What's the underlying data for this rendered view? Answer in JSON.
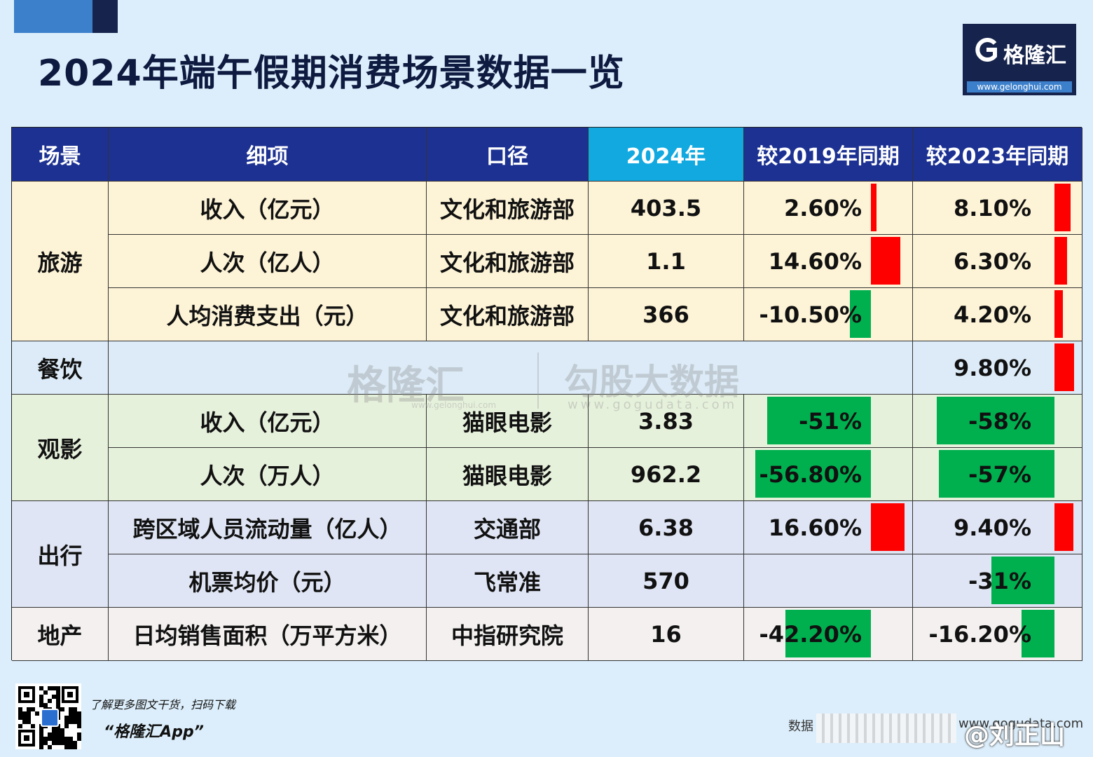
{
  "title": "2024年端午假期消费场景数据一览",
  "logo": {
    "name": "格隆汇",
    "url": "www.gelonghui.com"
  },
  "colors": {
    "header_bg": "#1c3192",
    "year_header_bg": "#12a9e0",
    "increase": "#ff0000",
    "decrease": "#00b04f",
    "travel_bg": "#fdf3d6",
    "food_bg": "#dcebf7",
    "movie_bg": "#e6f1dc",
    "transport_bg": "#dfe5f4",
    "estate_bg": "#f3f0ef"
  },
  "chart_data": {
    "type": "table",
    "title": "2024年端午假期消费场景数据一览",
    "columns": [
      "场景",
      "细项",
      "口径",
      "2024年",
      "较2019年同期",
      "较2023年同期"
    ],
    "rows": [
      {
        "scene": "旅游",
        "item": "收入（亿元）",
        "source": "文化和旅游部",
        "v2024": "403.5",
        "vs2019": "2.60%",
        "vs2019_num": 2.6,
        "vs2023": "8.10%",
        "vs2023_num": 8.1
      },
      {
        "scene": "旅游",
        "item": "人次（亿人）",
        "source": "文化和旅游部",
        "v2024": "1.1",
        "vs2019": "14.60%",
        "vs2019_num": 14.6,
        "vs2023": "6.30%",
        "vs2023_num": 6.3
      },
      {
        "scene": "旅游",
        "item": "人均消费支出（元）",
        "source": "文化和旅游部",
        "v2024": "366",
        "vs2019": "-10.50%",
        "vs2019_num": -10.5,
        "vs2023": "4.20%",
        "vs2023_num": 4.2
      },
      {
        "scene": "餐饮",
        "item": "",
        "source": "",
        "v2024": "",
        "vs2019": "",
        "vs2019_num": null,
        "vs2023": "9.80%",
        "vs2023_num": 9.8
      },
      {
        "scene": "观影",
        "item": "收入（亿元）",
        "source": "猫眼电影",
        "v2024": "3.83",
        "vs2019": "-51%",
        "vs2019_num": -51,
        "vs2023": "-58%",
        "vs2023_num": -58
      },
      {
        "scene": "观影",
        "item": "人次（万人）",
        "source": "猫眼电影",
        "v2024": "962.2",
        "vs2019": "-56.80%",
        "vs2019_num": -56.8,
        "vs2023": "-57%",
        "vs2023_num": -57
      },
      {
        "scene": "出行",
        "item": "跨区域人员流动量（亿人）",
        "source": "交通部",
        "v2024": "6.38",
        "vs2019": "16.60%",
        "vs2019_num": 16.6,
        "vs2023": "9.40%",
        "vs2023_num": 9.4
      },
      {
        "scene": "出行",
        "item": "机票均价（元）",
        "source": "飞常准",
        "v2024": "570",
        "vs2019": "",
        "vs2019_num": null,
        "vs2023": "-31%",
        "vs2023_num": -31
      },
      {
        "scene": "地产",
        "item": "日均销售面积（万平方米）",
        "source": "中指研究院",
        "v2024": "16",
        "vs2019": "-42.20%",
        "vs2019_num": -42.2,
        "vs2023": "-16.20%",
        "vs2023_num": -16.2
      }
    ],
    "scenes": [
      "旅游",
      "餐饮",
      "观影",
      "出行",
      "地产"
    ]
  },
  "watermark": {
    "brand1": "格隆汇",
    "url1": "www.gelonghui.com",
    "brand2": "勾股大数据",
    "url2": "www.gogudata.com"
  },
  "footer": {
    "line1": "了解更多图文干货，扫码下载",
    "line2": "“格隆汇App”",
    "source_label": "数据",
    "site": "www.gogudata.com",
    "handle": "@刘正山"
  }
}
